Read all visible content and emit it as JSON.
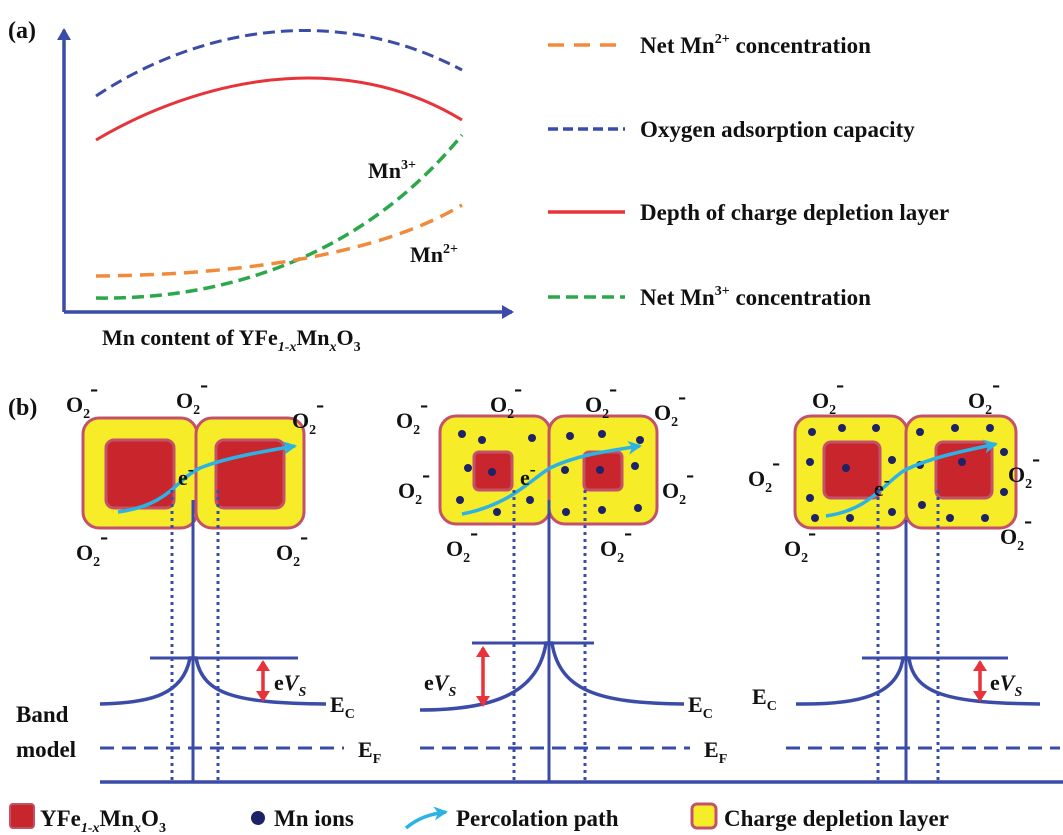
{
  "panel_a": {
    "label": "(a)",
    "xlabel_pre": "Mn content of YFe",
    "xlabel_sub1": "1-x",
    "xlabel_mid": "Mn",
    "xlabel_sub2": "x",
    "xlabel_post": "O",
    "xlabel_sub3": "3",
    "curve_labels": {
      "mn3_base": "Mn",
      "mn3_sup": "3+",
      "mn2_base": "Mn",
      "mn2_sup": "2+"
    },
    "legend": [
      {
        "id": "net-mn2",
        "text_pre": "Net Mn",
        "sup": "2+",
        "text_post": " concentration",
        "color": "#f28a3c",
        "style": "dashed"
      },
      {
        "id": "oxygen-adsorption",
        "text_pre": "Oxygen adsorption capacity",
        "sup": "",
        "text_post": "",
        "color": "#3b4ba8",
        "style": "dashed"
      },
      {
        "id": "depletion-depth",
        "text_pre": "Depth of charge depletion layer",
        "sup": "",
        "text_post": "",
        "color": "#e8333a",
        "style": "solid"
      },
      {
        "id": "net-mn3",
        "text_pre": "Net Mn",
        "sup": "3+",
        "text_post": " concentration",
        "color": "#2aa84a",
        "style": "dashed"
      }
    ]
  },
  "panel_b": {
    "label": "(b)",
    "o2_base": "O",
    "o2_sub": "2",
    "o2_sup": "-",
    "electron": "e",
    "electron_sup": "-",
    "band_model_line1": "Band",
    "band_model_line2": "model",
    "ec_base": "E",
    "ec_sub": "C",
    "ef_base": "E",
    "ef_sub": "F",
    "evs_e": "e",
    "evs_v": "V",
    "evs_sub": "S"
  },
  "legend_b": {
    "item1_pre": "YFe",
    "item1_sub1": "1-x",
    "item1_mid": "Mn",
    "item1_sub2": "x",
    "item1_post": "O",
    "item1_sub3": "3",
    "item2": "Mn ions",
    "item3": "Percolation path",
    "item4": "Charge depletion layer"
  },
  "colors": {
    "axis": "#3b4ba8",
    "core": "#c8262c",
    "depletion": "#f6ec28",
    "border": "#c4516a",
    "ion": "#1e2266",
    "path": "#2bb3e6",
    "evs_arrow": "#e8333a"
  }
}
